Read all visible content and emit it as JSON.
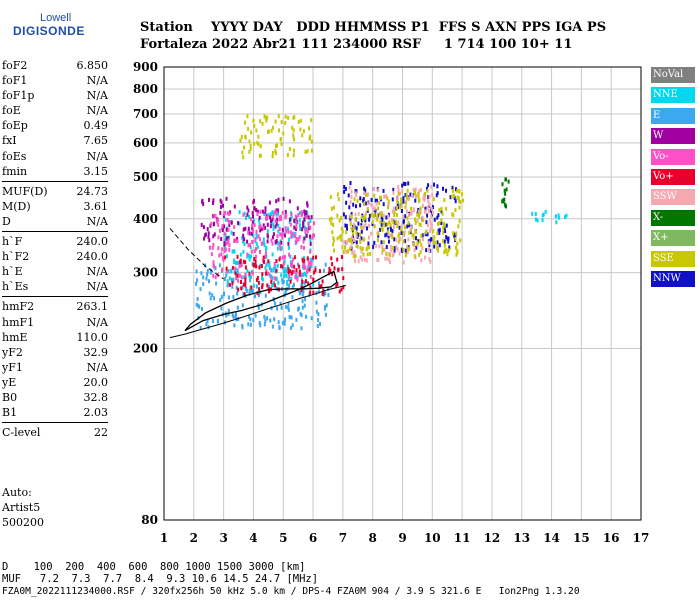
{
  "logo": {
    "top": "Lowell",
    "bottom": "DIGISONDE"
  },
  "header": {
    "labels": "Station    YYYY DAY   DDD HHMMSS P1  FFS S AXN PPS IGA PS",
    "values": "Fortaleza 2022 Abr21 111 234000 RSF     1 714 100 10+ 11"
  },
  "params": [
    [
      {
        "name": "foF2",
        "value": "6.850"
      },
      {
        "name": "foF1",
        "value": "N/A"
      },
      {
        "name": "foF1p",
        "value": "N/A"
      },
      {
        "name": "foE",
        "value": "N/A"
      },
      {
        "name": "foEp",
        "value": "0.49"
      },
      {
        "name": "fxI",
        "value": "7.65"
      },
      {
        "name": "foEs",
        "value": "N/A"
      },
      {
        "name": "fmin",
        "value": "3.15"
      }
    ],
    [
      {
        "name": "MUF(D)",
        "value": "24.73"
      },
      {
        "name": "M(D)",
        "value": "3.61"
      },
      {
        "name": "D",
        "value": "N/A"
      }
    ],
    [
      {
        "name": "h`F",
        "value": "240.0"
      },
      {
        "name": "h`F2",
        "value": "240.0"
      },
      {
        "name": "h`E",
        "value": "N/A"
      },
      {
        "name": "h`Es",
        "value": "N/A"
      }
    ],
    [
      {
        "name": "hmF2",
        "value": "263.1"
      },
      {
        "name": "hmF1",
        "value": "N/A"
      },
      {
        "name": "hmE",
        "value": "110.0"
      },
      {
        "name": "yF2",
        "value": "32.9"
      },
      {
        "name": "yF1",
        "value": "N/A"
      },
      {
        "name": "yE",
        "value": "20.0"
      },
      {
        "name": "B0",
        "value": "32.8"
      },
      {
        "name": "B1",
        "value": "2.03"
      }
    ],
    [
      {
        "name": "C-level",
        "value": "22"
      }
    ]
  ],
  "auto": {
    "line1": "Auto:",
    "line2": "Artist5",
    "line3": "500200"
  },
  "bottom": {
    "d_line": "D    100  200  400  600  800 1000 1500 3000 [km]",
    "muf_line": "MUF   7.2  7.3  7.7  8.4  9.3 10.6 14.5 24.7 [MHz]",
    "file_line": "FZA0M_2022111234000.RSF / 320fx256h 50 kHz 5.0 km / DPS-4 FZA0M 904 / 3.9 S 321.6 E   Ion2Png 1.3.20"
  },
  "legend": [
    {
      "label": "NoVal",
      "color": "#808080"
    },
    {
      "label": "NNE",
      "color": "#00d8f0"
    },
    {
      "label": "E",
      "color": "#3ca8f0"
    },
    {
      "label": "W",
      "color": "#a000a0"
    },
    {
      "label": "Vo-",
      "color": "#ff50c8"
    },
    {
      "label": "Vo+",
      "color": "#e8002c"
    },
    {
      "label": "SSW",
      "color": "#f5a8b0"
    },
    {
      "label": "X-",
      "color": "#007800"
    },
    {
      "label": "X+",
      "color": "#80b860"
    },
    {
      "label": "SSE",
      "color": "#c8c800"
    },
    {
      "label": "NNW",
      "color": "#1010c8"
    }
  ],
  "chart_data": {
    "type": "scatter",
    "xlim": [
      1,
      17
    ],
    "ylim": [
      80,
      900
    ],
    "x_ticks": [
      1,
      2,
      3,
      4,
      5,
      6,
      7,
      8,
      9,
      10,
      11,
      12,
      13,
      14,
      15,
      16,
      17
    ],
    "y_ticks": [
      80,
      200,
      300,
      400,
      500,
      600,
      700,
      800,
      900
    ],
    "y_scale": "log",
    "grid": true,
    "legend_position": "right",
    "clusters": [
      {
        "direction": "E",
        "x": [
          2,
          6.5
        ],
        "y": [
          225,
          320
        ]
      },
      {
        "direction": "NNE",
        "x": [
          3,
          6
        ],
        "y": [
          280,
          420
        ]
      },
      {
        "direction": "W",
        "x": [
          2.2,
          6
        ],
        "y": [
          350,
          450
        ]
      },
      {
        "direction": "Vo-",
        "x": [
          2.5,
          6
        ],
        "y": [
          290,
          420
        ]
      },
      {
        "direction": "Vo+",
        "x": [
          3,
          7
        ],
        "y": [
          270,
          330
        ]
      },
      {
        "direction": "SSE",
        "x": [
          3.5,
          6
        ],
        "y": [
          560,
          700
        ]
      },
      {
        "direction": "NNW",
        "x": [
          7,
          10.8
        ],
        "y": [
          340,
          490
        ]
      },
      {
        "direction": "SSW",
        "x": [
          7,
          10
        ],
        "y": [
          320,
          480
        ]
      },
      {
        "direction": "SSE",
        "x": [
          6.5,
          11
        ],
        "y": [
          330,
          470
        ]
      },
      {
        "direction": "X-",
        "x": [
          12.2,
          12.6
        ],
        "y": [
          430,
          500
        ]
      },
      {
        "direction": "NNE",
        "x": [
          13,
          14.5
        ],
        "y": [
          395,
          420
        ]
      }
    ],
    "trace": {
      "x": [
        1.7,
        2.3,
        3,
        3.6,
        4.2,
        4.8,
        5.4,
        5.9,
        6.3,
        6.7,
        6.8,
        6.6,
        6.2,
        5.7,
        5.1,
        4.5,
        3.8,
        3.1,
        2.4,
        1.9,
        1.7
      ],
      "y": [
        220,
        232,
        240,
        245,
        252,
        262,
        272,
        282,
        292,
        302,
        285,
        278,
        276,
        275,
        275,
        274,
        266,
        255,
        242,
        228,
        220
      ]
    },
    "trace2": {
      "x": [
        1.2,
        1.7,
        2.3,
        2.9,
        3.6,
        4.3,
        5,
        5.6,
        6.1,
        6.5,
        6.9,
        7.1
      ],
      "y": [
        212,
        216,
        222,
        228,
        236,
        245,
        254,
        262,
        268,
        274,
        278,
        280
      ]
    },
    "trace3": {
      "x": [
        1.2,
        1.8,
        2.4,
        3
      ],
      "y": [
        380,
        340,
        310,
        290
      ]
    }
  }
}
